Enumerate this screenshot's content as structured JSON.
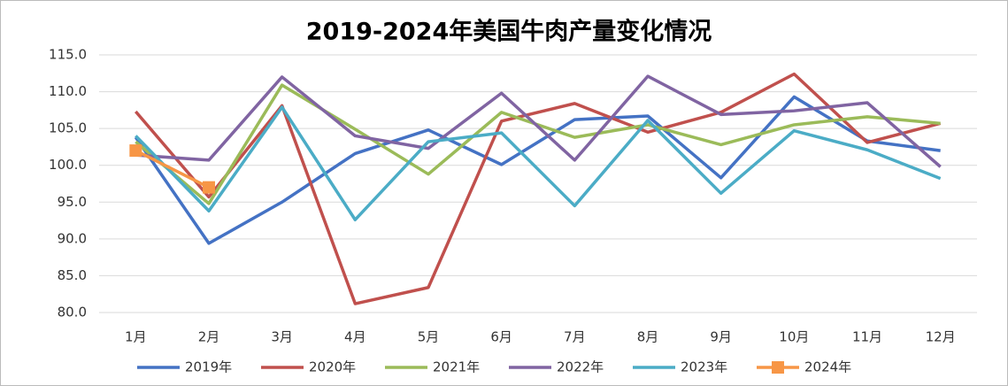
{
  "chart_data": {
    "type": "line",
    "title": "2019-2024年美国牛肉产量变化情况",
    "categories": [
      "1月",
      "2月",
      "3月",
      "4月",
      "5月",
      "6月",
      "7月",
      "8月",
      "9月",
      "10月",
      "11月",
      "12月"
    ],
    "series": [
      {
        "name": "2019年",
        "color": "#4472c4",
        "values": [
          103.8,
          89.4,
          95.0,
          101.6,
          104.8,
          100.1,
          106.2,
          106.7,
          98.3,
          109.3,
          103.3,
          102.0
        ]
      },
      {
        "name": "2020年",
        "color": "#c0504d",
        "values": [
          107.3,
          95.7,
          108.1,
          81.2,
          83.4,
          106.0,
          108.4,
          104.5,
          107.2,
          112.4,
          103.1,
          105.7
        ]
      },
      {
        "name": "2021年",
        "color": "#9bbb59",
        "values": [
          103.2,
          94.8,
          110.9,
          104.9,
          98.8,
          107.2,
          103.8,
          105.5,
          102.8,
          105.5,
          106.6,
          105.7
        ]
      },
      {
        "name": "2022年",
        "color": "#8064a2",
        "values": [
          101.4,
          100.7,
          112.0,
          104.0,
          102.3,
          109.8,
          100.7,
          112.1,
          106.9,
          107.4,
          108.5,
          99.8
        ]
      },
      {
        "name": "2023年",
        "color": "#4bacc6",
        "values": [
          104.0,
          93.8,
          107.9,
          92.6,
          103.2,
          104.4,
          94.5,
          106.1,
          96.2,
          104.7,
          102.1,
          98.2
        ]
      },
      {
        "name": "2024年",
        "color": "#f79646",
        "marker": "square",
        "values": [
          102.0,
          97.0,
          null,
          null,
          null,
          null,
          null,
          null,
          null,
          null,
          null,
          null
        ]
      }
    ],
    "ylim": [
      80,
      115
    ],
    "yticks": [
      {
        "value": 80,
        "label": "80.0"
      },
      {
        "value": 85,
        "label": "85.0"
      },
      {
        "value": 90,
        "label": "90.0"
      },
      {
        "value": 95,
        "label": "95.0"
      },
      {
        "value": 100,
        "label": "100.0"
      },
      {
        "value": 105,
        "label": "105.0"
      },
      {
        "value": 110,
        "label": "110.0"
      },
      {
        "value": 115,
        "label": "115.0"
      }
    ],
    "grid": true,
    "legend": "bottom"
  }
}
